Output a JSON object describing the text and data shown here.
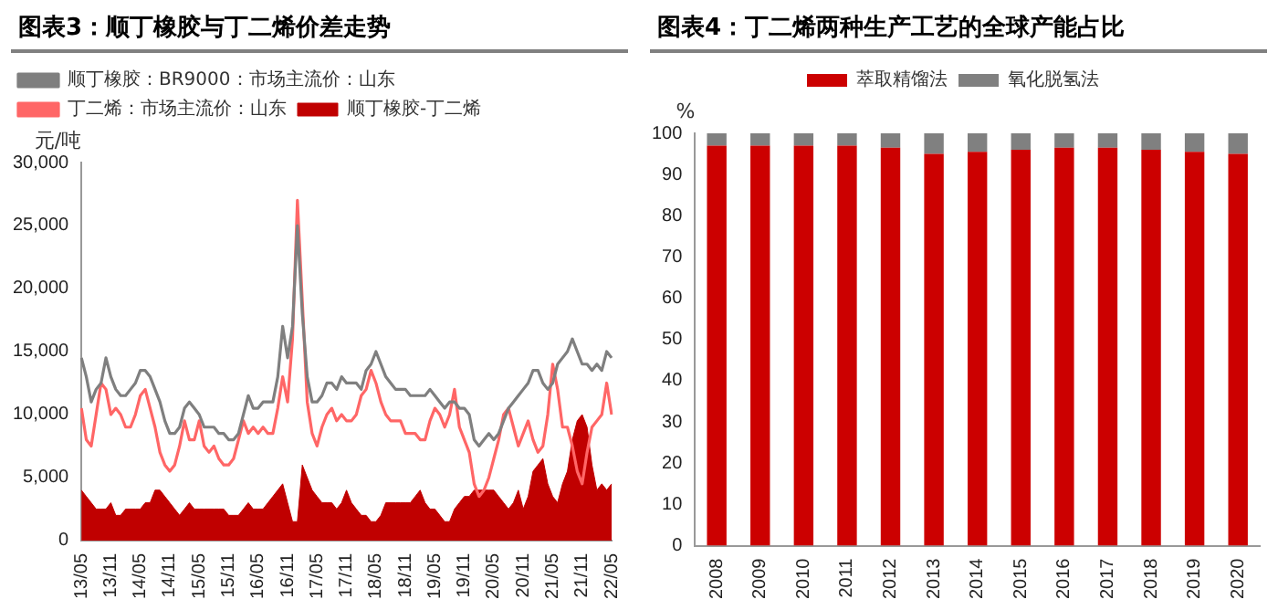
{
  "chart_data": [
    {
      "type": "line",
      "title": "图表3：顺丁橡胶与丁二烯价差走势",
      "ylabel": "元/吨",
      "categories": [
        "13/05",
        null,
        null,
        null,
        null,
        null,
        "13/11",
        null,
        null,
        null,
        null,
        null,
        "14/05",
        null,
        null,
        null,
        null,
        null,
        "14/11",
        null,
        null,
        null,
        null,
        null,
        "15/05",
        null,
        null,
        null,
        null,
        null,
        "15/11",
        null,
        null,
        null,
        null,
        null,
        "16/05",
        null,
        null,
        null,
        null,
        null,
        "16/11",
        null,
        null,
        null,
        null,
        null,
        "17/05",
        null,
        null,
        null,
        null,
        null,
        "17/11",
        null,
        null,
        null,
        null,
        null,
        "18/05",
        null,
        null,
        null,
        null,
        null,
        "18/11",
        null,
        null,
        null,
        null,
        null,
        "19/05",
        null,
        null,
        null,
        null,
        null,
        "19/11",
        null,
        null,
        null,
        null,
        null,
        "20/05",
        null,
        null,
        null,
        null,
        null,
        "20/11",
        null,
        null,
        null,
        null,
        null,
        "21/05",
        null,
        null,
        null,
        null,
        null,
        "21/11",
        null,
        null,
        null,
        null,
        null,
        "22/05"
      ],
      "series": [
        {
          "name": "顺丁橡胶-丁二烯",
          "type": "area",
          "color": "#c00000",
          "values": [
            4000,
            3500,
            3000,
            2500,
            2500,
            2500,
            3000,
            2000,
            2000,
            2500,
            2500,
            2500,
            2500,
            3000,
            3000,
            4000,
            4000,
            3500,
            3000,
            2500,
            2000,
            2500,
            3000,
            2500,
            2500,
            2500,
            2500,
            2500,
            2500,
            2500,
            2000,
            2000,
            2000,
            2500,
            3000,
            2500,
            2500,
            2500,
            3000,
            3500,
            4000,
            4500,
            3000,
            1500,
            1500,
            6000,
            5000,
            4000,
            3500,
            3000,
            3000,
            3000,
            2500,
            3000,
            4000,
            3000,
            2500,
            2000,
            2000,
            1500,
            1500,
            2000,
            3000,
            3000,
            3000,
            3000,
            3000,
            3000,
            3500,
            4000,
            3000,
            2500,
            2500,
            2000,
            1500,
            1500,
            2500,
            3000,
            3500,
            3500,
            4000,
            4000,
            4000,
            4000,
            4000,
            3500,
            3000,
            2500,
            3000,
            4000,
            2500,
            3500,
            5500,
            6000,
            6500,
            4500,
            3500,
            3000,
            4500,
            5500,
            8000,
            9500,
            10000,
            9000,
            6000,
            4000,
            4500,
            4000,
            4500
          ]
        },
        {
          "name": "顺丁橡胶：BR9000：市场主流价：山东",
          "color": "#7f7f7f",
          "values": [
            14500,
            13000,
            11000,
            12000,
            12500,
            14500,
            13000,
            12000,
            11500,
            11500,
            12000,
            12500,
            13500,
            13500,
            13000,
            12000,
            11000,
            9500,
            8500,
            8500,
            9000,
            10500,
            11000,
            10500,
            10000,
            9000,
            9000,
            9000,
            8500,
            8500,
            8000,
            8000,
            8500,
            10000,
            11500,
            10500,
            10500,
            11000,
            11000,
            11000,
            13000,
            17000,
            14500,
            17000,
            25000,
            18000,
            13000,
            11000,
            11000,
            11500,
            12500,
            12500,
            12000,
            13000,
            12500,
            12500,
            12500,
            12000,
            13500,
            14000,
            15000,
            14000,
            13000,
            12500,
            12000,
            12000,
            12000,
            11500,
            11500,
            11500,
            11500,
            12000,
            11500,
            11000,
            10500,
            11000,
            11000,
            10500,
            10500,
            10000,
            8000,
            7500,
            8000,
            8500,
            8000,
            8500,
            9500,
            10500,
            11000,
            11500,
            12000,
            12500,
            13500,
            13500,
            12500,
            12000,
            12500,
            14000,
            14500,
            15000,
            16000,
            15000,
            14000,
            14000,
            13500,
            14000,
            13500,
            15000,
            14500
          ]
        },
        {
          "name": "丁二烯：市场主流价：山东",
          "color": "#ff6666",
          "values": [
            10500,
            8000,
            7500,
            10000,
            12500,
            12000,
            10000,
            10500,
            10000,
            9000,
            9000,
            10000,
            11500,
            12000,
            10500,
            9000,
            7000,
            6000,
            5500,
            6000,
            7500,
            9500,
            8000,
            8000,
            9500,
            7500,
            7000,
            7500,
            6500,
            6000,
            6000,
            6500,
            8000,
            9500,
            8500,
            9000,
            8500,
            9000,
            8500,
            8500,
            10500,
            13000,
            11000,
            16000,
            27000,
            19000,
            11000,
            8500,
            7500,
            9000,
            10000,
            10500,
            9500,
            10000,
            9500,
            9500,
            10000,
            11500,
            12000,
            13500,
            12500,
            11000,
            10000,
            9500,
            9500,
            9500,
            8500,
            8500,
            8500,
            8000,
            8000,
            9500,
            10500,
            10000,
            9000,
            10000,
            12000,
            9000,
            8000,
            7000,
            4500,
            3500,
            4000,
            5000,
            6500,
            8000,
            10000,
            10500,
            9000,
            7500,
            8500,
            9500,
            8000,
            7000,
            7500,
            10000,
            14000,
            12000,
            9000,
            9000,
            7500,
            5500,
            4500,
            7000,
            9000,
            9500,
            10000,
            12500,
            10000
          ]
        }
      ],
      "ylim": [
        0,
        30000
      ],
      "yticks": [
        0,
        {
          "value": 5000,
          "label": "5,000"
        },
        {
          "value": 10000,
          "label": "10,000"
        },
        {
          "value": 15000,
          "label": "15,000"
        },
        {
          "value": 20000,
          "label": "20,000"
        },
        {
          "value": 25000,
          "label": "25,000"
        },
        {
          "value": 30000,
          "label": "30,000"
        }
      ],
      "grid": false,
      "legend": "top left"
    },
    {
      "type": "bar",
      "title": "图表4：丁二烯两种生产工艺的全球产能占比",
      "ylabel": "%",
      "stacked": true,
      "categories": [
        "2008",
        "2009",
        "2010",
        "2011",
        "2012",
        "2013",
        "2014",
        "2015",
        "2016",
        "2017",
        "2018",
        "2019",
        "2020"
      ],
      "series": [
        {
          "name": "萃取精馏法",
          "color": "#cc0000",
          "values": [
            97,
            97,
            97,
            97,
            96.5,
            95,
            95.5,
            96,
            96.5,
            96.5,
            96,
            95.5,
            95
          ]
        },
        {
          "name": "氧化脱氢法",
          "color": "#808080",
          "values": [
            3,
            3,
            3,
            3,
            3.5,
            5,
            4.5,
            4,
            3.5,
            3.5,
            4,
            4.5,
            5
          ]
        }
      ],
      "ylim": [
        0,
        100
      ],
      "yticks": [
        0,
        10,
        20,
        30,
        40,
        50,
        60,
        70,
        80,
        90,
        100
      ],
      "grid": false,
      "legend": "top"
    }
  ]
}
